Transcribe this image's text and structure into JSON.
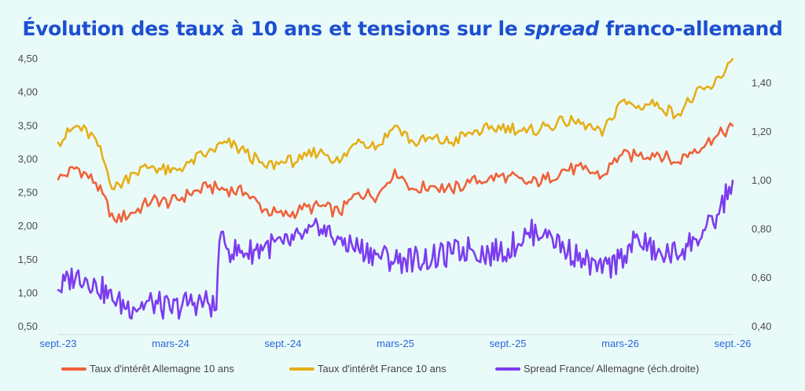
{
  "title": {
    "before": "Évolution des taux à 10 ans et tensions sur le ",
    "emphasis": "spread",
    "after": " franco-allemand"
  },
  "chart_data": {
    "type": "line",
    "title": "Évolution des taux à 10 ans et tensions sur le spread franco-allemand",
    "x_ticks": [
      "sept.-23",
      "mars-24",
      "sept.-24",
      "mars-25",
      "sept.-25",
      "mars-26",
      "sept.-26"
    ],
    "x_range": [
      "2023-09",
      "2026-09"
    ],
    "y_left": {
      "range": [
        0.5,
        4.5
      ],
      "ticks": [
        "0,50",
        "1,00",
        "1,50",
        "2,00",
        "2,50",
        "3,00",
        "3,50",
        "4,00",
        "4,50"
      ]
    },
    "y_right": {
      "range": [
        0.4,
        1.5
      ],
      "ticks": [
        "0,40",
        "0,60",
        "0,80",
        "1,00",
        "1,20",
        "1,40"
      ],
      "label": "éch.droite"
    },
    "grid": false,
    "legend_position": "bottom",
    "series": [
      {
        "name": "Taux d'intérêt Allemagne 10 ans",
        "axis": "left",
        "color": "#f0613a",
        "points": [
          [
            "2023-09",
            2.7
          ],
          [
            "2023-10",
            2.88
          ],
          [
            "2023-11",
            2.65
          ],
          [
            "2023-12",
            2.1
          ],
          [
            "2024-01",
            2.2
          ],
          [
            "2024-02",
            2.4
          ],
          [
            "2024-03",
            2.35
          ],
          [
            "2024-04",
            2.48
          ],
          [
            "2024-05",
            2.58
          ],
          [
            "2024-06",
            2.55
          ],
          [
            "2024-07",
            2.5
          ],
          [
            "2024-08",
            2.25
          ],
          [
            "2024-09",
            2.15
          ],
          [
            "2024-10",
            2.25
          ],
          [
            "2024-11",
            2.3
          ],
          [
            "2024-12",
            2.2
          ],
          [
            "2025-01",
            2.5
          ],
          [
            "2025-02",
            2.45
          ],
          [
            "2025-03",
            2.85
          ],
          [
            "2025-04",
            2.55
          ],
          [
            "2025-05",
            2.6
          ],
          [
            "2025-06",
            2.55
          ],
          [
            "2025-07",
            2.65
          ],
          [
            "2025-08",
            2.72
          ],
          [
            "2025-09",
            2.75
          ],
          [
            "2025-10",
            2.63
          ],
          [
            "2025-11",
            2.7
          ],
          [
            "2025-12",
            2.85
          ],
          [
            "2026-01",
            2.85
          ],
          [
            "2026-02",
            2.75
          ],
          [
            "2026-03",
            3.05
          ],
          [
            "2026-04",
            3.05
          ],
          [
            "2026-05",
            3.1
          ],
          [
            "2026-06",
            2.95
          ],
          [
            "2026-07",
            3.15
          ],
          [
            "2026-08",
            3.3
          ],
          [
            "2026-09",
            3.5
          ]
        ]
      },
      {
        "name": "Taux d'intérêt  France 10 ans",
        "axis": "left",
        "color": "#e6ae17",
        "points": [
          [
            "2023-09",
            3.25
          ],
          [
            "2023-10",
            3.5
          ],
          [
            "2023-11",
            3.3
          ],
          [
            "2023-12",
            2.55
          ],
          [
            "2024-01",
            2.8
          ],
          [
            "2024-02",
            2.9
          ],
          [
            "2024-03",
            2.8
          ],
          [
            "2024-04",
            2.95
          ],
          [
            "2024-05",
            3.1
          ],
          [
            "2024-06",
            3.25
          ],
          [
            "2024-07",
            3.1
          ],
          [
            "2024-08",
            2.9
          ],
          [
            "2024-09",
            2.95
          ],
          [
            "2024-10",
            3.0
          ],
          [
            "2024-11",
            3.15
          ],
          [
            "2024-12",
            2.95
          ],
          [
            "2025-01",
            3.3
          ],
          [
            "2025-02",
            3.2
          ],
          [
            "2025-03",
            3.5
          ],
          [
            "2025-04",
            3.25
          ],
          [
            "2025-05",
            3.3
          ],
          [
            "2025-06",
            3.25
          ],
          [
            "2025-07",
            3.4
          ],
          [
            "2025-08",
            3.45
          ],
          [
            "2025-09",
            3.5
          ],
          [
            "2025-10",
            3.4
          ],
          [
            "2025-11",
            3.5
          ],
          [
            "2025-12",
            3.55
          ],
          [
            "2026-01",
            3.55
          ],
          [
            "2026-02",
            3.35
          ],
          [
            "2026-03",
            3.85
          ],
          [
            "2026-04",
            3.8
          ],
          [
            "2026-05",
            3.85
          ],
          [
            "2026-06",
            3.65
          ],
          [
            "2026-07",
            3.95
          ],
          [
            "2026-08",
            4.1
          ],
          [
            "2026-09",
            4.5
          ]
        ]
      },
      {
        "name": "Spread France/ Allemagne (éch.droite)",
        "axis": "right",
        "color": "#7c3cf0",
        "points": [
          [
            "2023-09",
            0.55
          ],
          [
            "2023-10",
            0.62
          ],
          [
            "2023-11",
            0.58
          ],
          [
            "2023-12",
            0.5
          ],
          [
            "2024-01",
            0.48
          ],
          [
            "2024-02",
            0.5
          ],
          [
            "2024-03",
            0.47
          ],
          [
            "2024-04",
            0.5
          ],
          [
            "2024-05",
            0.5
          ],
          [
            "2024-05-15",
            0.47
          ],
          [
            "2024-05-20",
            0.75
          ],
          [
            "2024-06",
            0.72
          ],
          [
            "2024-07",
            0.7
          ],
          [
            "2024-08",
            0.73
          ],
          [
            "2024-09",
            0.74
          ],
          [
            "2024-10",
            0.76
          ],
          [
            "2024-11",
            0.8
          ],
          [
            "2024-12",
            0.76
          ],
          [
            "2025-01",
            0.72
          ],
          [
            "2025-02",
            0.7
          ],
          [
            "2025-03",
            0.67
          ],
          [
            "2025-04",
            0.68
          ],
          [
            "2025-05",
            0.68
          ],
          [
            "2025-06",
            0.7
          ],
          [
            "2025-07",
            0.72
          ],
          [
            "2025-08",
            0.7
          ],
          [
            "2025-09",
            0.72
          ],
          [
            "2025-10",
            0.78
          ],
          [
            "2025-11",
            0.8
          ],
          [
            "2025-12",
            0.72
          ],
          [
            "2026-01",
            0.68
          ],
          [
            "2026-02",
            0.62
          ],
          [
            "2026-03",
            0.68
          ],
          [
            "2026-04",
            0.76
          ],
          [
            "2026-05",
            0.7
          ],
          [
            "2026-06",
            0.7
          ],
          [
            "2026-07",
            0.76
          ],
          [
            "2026-08",
            0.82
          ],
          [
            "2026-09",
            1.0
          ]
        ]
      }
    ]
  }
}
